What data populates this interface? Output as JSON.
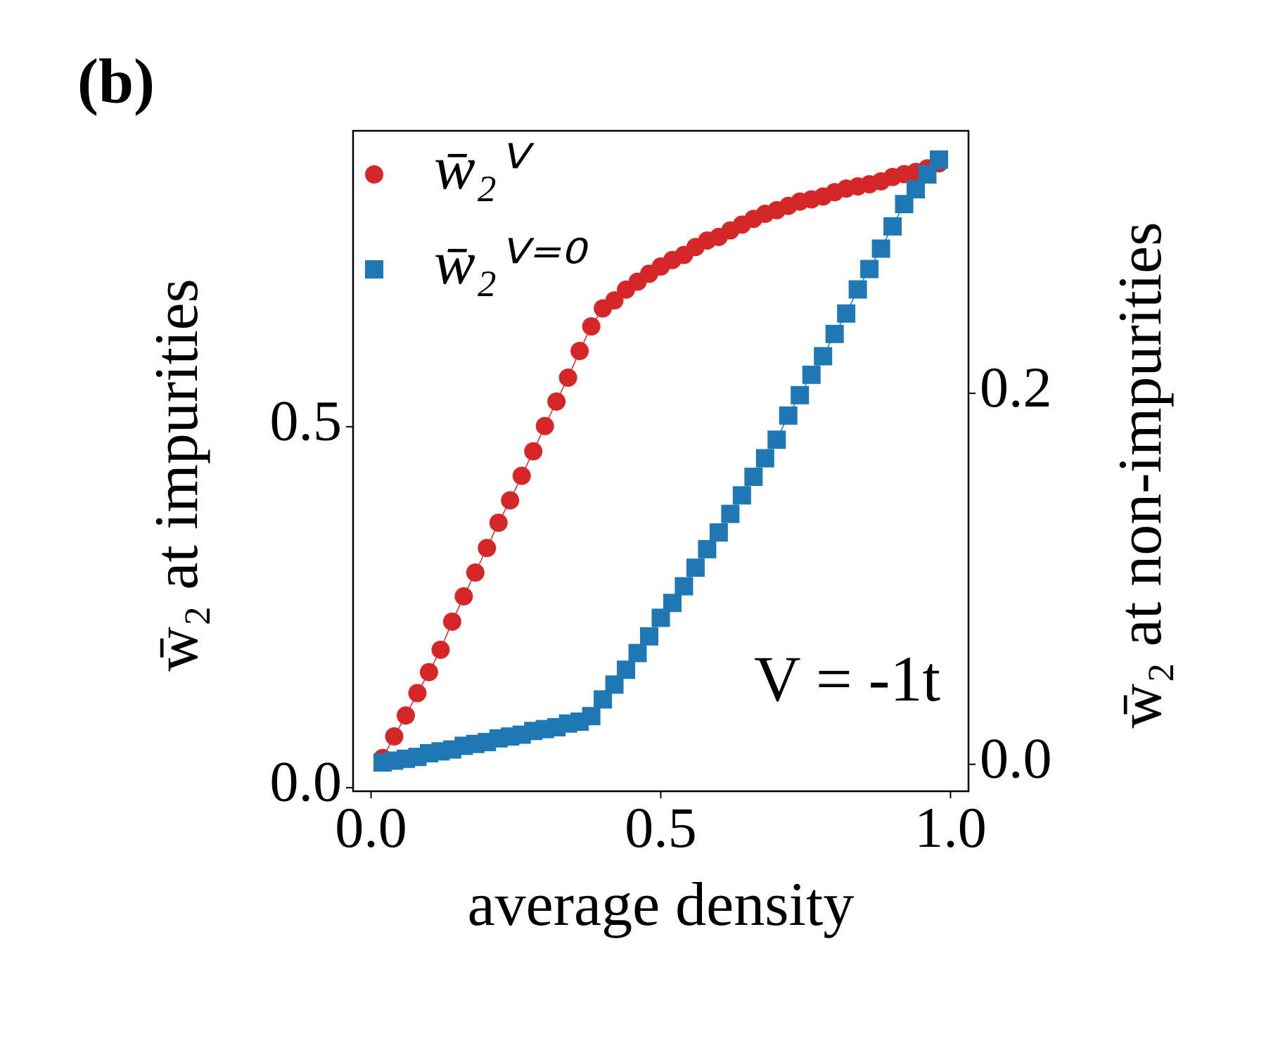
{
  "chart_data": {
    "type": "line",
    "panel_label": "(b)",
    "xlabel": "average density",
    "ylabel": "w̄₂ at impurities",
    "y2label": "w̄₂ at non-impurities",
    "annotation": "V = -1t",
    "x": [
      0.02,
      0.04,
      0.06,
      0.08,
      0.1,
      0.12,
      0.14,
      0.16,
      0.18,
      0.2,
      0.22,
      0.24,
      0.26,
      0.28,
      0.3,
      0.32,
      0.34,
      0.36,
      0.38,
      0.4,
      0.42,
      0.44,
      0.46,
      0.48,
      0.5,
      0.52,
      0.54,
      0.56,
      0.58,
      0.6,
      0.62,
      0.64,
      0.66,
      0.68,
      0.7,
      0.72,
      0.74,
      0.76,
      0.78,
      0.8,
      0.82,
      0.84,
      0.86,
      0.88,
      0.9,
      0.92,
      0.94,
      0.96,
      0.98
    ],
    "series": [
      {
        "name": "w̄₂ⱽ",
        "color": "#d62728",
        "marker": "circle",
        "values": [
          0.041,
          0.071,
          0.1,
          0.131,
          0.16,
          0.191,
          0.23,
          0.265,
          0.298,
          0.332,
          0.367,
          0.398,
          0.432,
          0.466,
          0.501,
          0.535,
          0.568,
          0.605,
          0.639,
          0.664,
          0.675,
          0.69,
          0.701,
          0.712,
          0.722,
          0.731,
          0.738,
          0.749,
          0.758,
          0.763,
          0.772,
          0.78,
          0.788,
          0.795,
          0.8,
          0.806,
          0.812,
          0.815,
          0.819,
          0.825,
          0.83,
          0.833,
          0.836,
          0.84,
          0.846,
          0.85,
          0.853,
          0.858,
          0.865
        ]
      },
      {
        "name": "w̄₂ⱽ⁼⁰",
        "color": "#1f77b4",
        "marker": "square",
        "axis": "y2",
        "values": [
          0.001,
          0.002,
          0.003,
          0.004,
          0.006,
          0.007,
          0.008,
          0.01,
          0.011,
          0.012,
          0.014,
          0.015,
          0.016,
          0.018,
          0.019,
          0.02,
          0.022,
          0.023,
          0.026,
          0.035,
          0.043,
          0.051,
          0.06,
          0.069,
          0.079,
          0.087,
          0.096,
          0.106,
          0.116,
          0.125,
          0.135,
          0.145,
          0.155,
          0.165,
          0.175,
          0.188,
          0.199,
          0.21,
          0.22,
          0.232,
          0.243,
          0.256,
          0.267,
          0.278,
          0.29,
          0.302,
          0.31,
          0.318,
          0.326
        ]
      }
    ],
    "xlim": [
      -0.031,
      1.031
    ],
    "xticks": [
      {
        "value": 0,
        "label": "0.0"
      },
      0.5,
      {
        "value": 1,
        "label": "1.0"
      }
    ],
    "ylim": [
      -0.005,
      0.91
    ],
    "yticks": [
      {
        "value": 0,
        "label": "0.0"
      },
      0.5
    ],
    "y2lim": [
      -0.0145,
      0.3415
    ],
    "y2ticks": [
      {
        "value": 0,
        "label": "0.0"
      },
      0.2
    ],
    "legend": "upper left"
  }
}
